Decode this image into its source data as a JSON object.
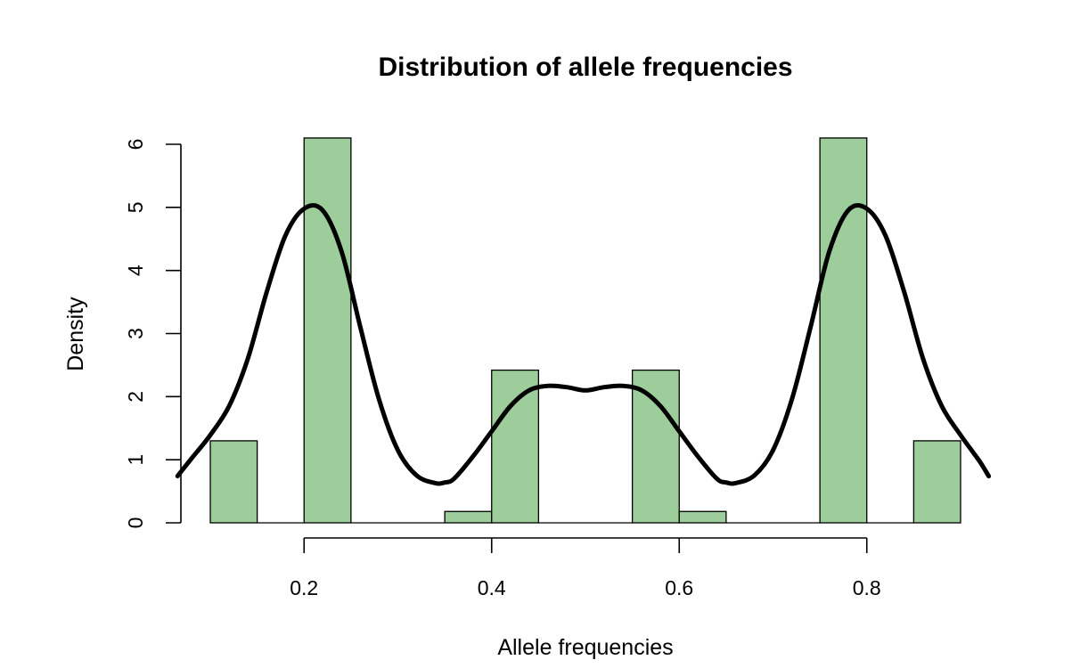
{
  "chart_data": {
    "type": "bar",
    "title": "Distribution of allele frequencies",
    "xlabel": "Allele frequencies",
    "ylabel": "Density",
    "xlim": [
      0.065,
      0.93
    ],
    "ylim": [
      0,
      6
    ],
    "x_ticks": [
      0.2,
      0.4,
      0.6,
      0.8
    ],
    "x_tick_labels": [
      "0.2",
      "0.4",
      "0.6",
      "0.8"
    ],
    "y_ticks": [
      0,
      1,
      2,
      3,
      4,
      5,
      6
    ],
    "y_tick_labels": [
      "0",
      "1",
      "2",
      "3",
      "4",
      "5",
      "6"
    ],
    "grid": false,
    "bar_color": "#9ccd9a",
    "histogram": {
      "bin_edges": [
        0.1,
        0.15,
        0.2,
        0.25,
        0.3,
        0.35,
        0.4,
        0.45,
        0.5,
        0.55,
        0.6,
        0.65,
        0.7,
        0.75,
        0.8,
        0.85,
        0.9
      ],
      "density": [
        1.3,
        0,
        6.1,
        0,
        0,
        0.18,
        2.42,
        0,
        0,
        2.42,
        0.18,
        0,
        0,
        6.1,
        0,
        1.3
      ]
    },
    "density_curve": {
      "x": [
        0.065,
        0.08,
        0.1,
        0.12,
        0.14,
        0.16,
        0.18,
        0.2,
        0.22,
        0.24,
        0.26,
        0.28,
        0.3,
        0.32,
        0.34,
        0.35,
        0.36,
        0.38,
        0.4,
        0.42,
        0.44,
        0.46,
        0.48,
        0.5,
        0.52,
        0.54,
        0.56,
        0.58,
        0.6,
        0.62,
        0.64,
        0.65,
        0.66,
        0.68,
        0.7,
        0.72,
        0.74,
        0.76,
        0.78,
        0.8,
        0.82,
        0.84,
        0.86,
        0.88,
        0.9,
        0.92,
        0.93
      ],
      "y": [
        0.74,
        1.02,
        1.39,
        1.85,
        2.6,
        3.65,
        4.55,
        4.98,
        4.95,
        4.3,
        3.1,
        1.95,
        1.15,
        0.75,
        0.63,
        0.64,
        0.7,
        1.05,
        1.45,
        1.85,
        2.1,
        2.17,
        2.15,
        2.1,
        2.15,
        2.17,
        2.1,
        1.85,
        1.45,
        1.05,
        0.7,
        0.64,
        0.63,
        0.75,
        1.15,
        1.95,
        3.1,
        4.3,
        4.95,
        4.98,
        4.55,
        3.65,
        2.6,
        1.85,
        1.39,
        0.98,
        0.74
      ]
    }
  }
}
